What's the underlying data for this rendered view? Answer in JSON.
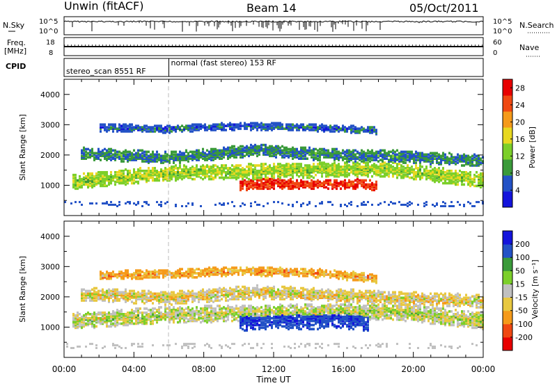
{
  "header": {
    "station": "Unwin (fitACF)",
    "beam": "Beam 14",
    "date": "05/Oct/2011"
  },
  "chart_data": [
    {
      "type": "line",
      "panel": "noise",
      "left_label": "N.Sky",
      "right_label": "N.Search",
      "left_ticks": [
        "10^5",
        "10^0"
      ],
      "right_ticks": [
        "10^5",
        "10^0"
      ],
      "left_scale": "log",
      "trace": "black noise trace near top of scale, dense spikes 08:00-17:00"
    },
    {
      "type": "line",
      "panel": "frequency",
      "left_label": "Freq. [MHz]",
      "left_ticks": [
        "18",
        "8"
      ],
      "right_label": "Nave",
      "right_ticks": [
        "60",
        "0"
      ],
      "freq_level_mhz": 13.5,
      "nave_level": 30
    },
    {
      "type": "table",
      "panel": "cpid",
      "label": "CPID",
      "segments": [
        {
          "start": "00:00",
          "end": "06:00",
          "text": "stereo_scan 8551 RF"
        },
        {
          "start": "06:00",
          "end": "24:00",
          "text": "normal (fast stereo) 153 RF"
        }
      ]
    },
    {
      "type": "heatmap",
      "panel": "power",
      "ylabel": "Slant Range [km]",
      "ylim": [
        0,
        4500
      ],
      "yticks": [
        1000,
        2000,
        3000,
        4000
      ],
      "colorbar_label": "Power [dB]",
      "colorbar_ticks": [
        4,
        8,
        12,
        16,
        20,
        24,
        28
      ],
      "colorbar_range": [
        0,
        30
      ],
      "colors": [
        "#1414dc",
        "#2352c6",
        "#3a9a3a",
        "#7ccf2a",
        "#e8d820",
        "#f59a1a",
        "#f04812",
        "#e80000"
      ],
      "bands": [
        {
          "x": [
            1.0,
            6.0,
            11.0,
            15.0,
            19.0,
            24.0
          ],
          "center_km": [
            2050,
            1900,
            2150,
            2000,
            1950,
            1800
          ],
          "width_km": 400,
          "level_db": 8
        },
        {
          "x": [
            0.5,
            6.0,
            11.0,
            15.0,
            19.0,
            24.0
          ],
          "center_km": [
            1100,
            1400,
            1450,
            1500,
            1500,
            1150
          ],
          "width_km": 500,
          "level_db": 14
        },
        {
          "x": [
            10.0,
            12.0,
            14.0,
            16.0,
            18.0
          ],
          "center_km": [
            1000,
            1050,
            1000,
            1050,
            1000
          ],
          "width_km": 350,
          "level_db": 26
        },
        {
          "x": [
            2.0,
            6.0,
            10.0,
            14.0,
            18.0
          ],
          "center_km": [
            2900,
            2850,
            2950,
            2900,
            2800
          ],
          "width_km": 250,
          "level_db": 6
        }
      ]
    },
    {
      "type": "heatmap",
      "panel": "velocity",
      "ylabel": "Slant Range [km]",
      "xlabel": "Time UT",
      "ylim": [
        0,
        4500
      ],
      "yticks": [
        1000,
        2000,
        3000,
        4000
      ],
      "xticks": [
        "00:00",
        "04:00",
        "08:00",
        "12:00",
        "16:00",
        "20:00",
        "00:00"
      ],
      "colorbar_label": "Velocity [m s⁻¹]",
      "colorbar_ticks": [
        200,
        100,
        50,
        15,
        -15,
        -50,
        -100,
        -200
      ],
      "colorbar_range": [
        -250,
        250
      ],
      "colors": [
        "#e80000",
        "#f04812",
        "#f59a1a",
        "#e8c840",
        "#c0c0c0",
        "#7ccf2a",
        "#3a9a3a",
        "#2352c6",
        "#1414dc"
      ],
      "bands": [
        {
          "x": [
            0.5,
            6.0,
            11.0,
            15.0,
            19.0,
            24.0
          ],
          "center_km": [
            1200,
            1400,
            1450,
            1500,
            1500,
            1200
          ],
          "width_km": 550,
          "level_ms": 0
        },
        {
          "x": [
            1.0,
            6.0,
            11.0,
            15.0,
            19.0,
            24.0
          ],
          "center_km": [
            2100,
            1950,
            2150,
            2050,
            1950,
            1850
          ],
          "width_km": 450,
          "level_ms": -20
        },
        {
          "x": [
            10.0,
            12.0,
            14.0,
            16.0,
            17.5
          ],
          "center_km": [
            1200,
            1300,
            1250,
            1300,
            1200
          ],
          "width_km": 700,
          "level_ms": 180
        },
        {
          "x": [
            2.0,
            6.0,
            10.0,
            14.0,
            18.0
          ],
          "center_km": [
            2700,
            2750,
            2850,
            2800,
            2600
          ],
          "width_km": 300,
          "level_ms": -60
        }
      ]
    }
  ]
}
